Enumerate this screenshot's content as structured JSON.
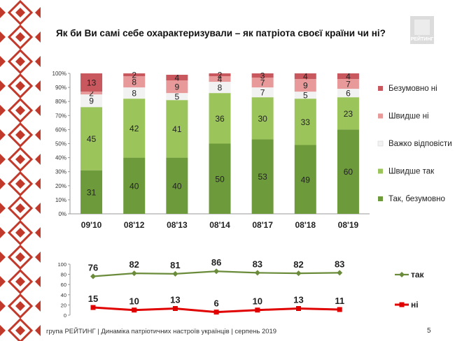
{
  "title": "Як  би Ви самі себе охарактеризували – як патріота своєї країни чи ні?",
  "logo": {
    "text": "РЕЙТИНГ"
  },
  "footer": "група РЕЙТИНГ | Динаміка патріотичних настроїв українців | серпень  2019",
  "page_number": "5",
  "colors": {
    "definitely_yes": "#6d9a3a",
    "rather_yes": "#9bc45a",
    "hard_to_say": "#f2f2f2",
    "rather_no": "#e89a9a",
    "definitely_no": "#c9575e",
    "line_yes": "#6a8c3a",
    "line_no": "#e00000",
    "ornament": "#c0392b"
  },
  "chart_data": [
    {
      "type": "bar",
      "stacked": true,
      "normalized": true,
      "categories": [
        "09'10",
        "08'12",
        "08'13",
        "08'14",
        "08'17",
        "08'18",
        "08'19"
      ],
      "yticks": [
        "0%",
        "10%",
        "20%",
        "30%",
        "40%",
        "50%",
        "60%",
        "70%",
        "80%",
        "90%",
        "100%"
      ],
      "ylim": [
        0,
        100
      ],
      "legend_position": "right",
      "series": [
        {
          "name": "Так, безумовно",
          "values": [
            31,
            40,
            40,
            50,
            53,
            49,
            60
          ]
        },
        {
          "name": "Швидше так",
          "values": [
            45,
            42,
            41,
            36,
            30,
            33,
            23
          ]
        },
        {
          "name": "Важко відповісти",
          "values": [
            9,
            8,
            5,
            8,
            7,
            5,
            6
          ]
        },
        {
          "name": "Швидше ні",
          "values": [
            2,
            8,
            9,
            4,
            7,
            9,
            7
          ]
        },
        {
          "name": "Безумовно ні",
          "values": [
            13,
            2,
            4,
            2,
            3,
            4,
            4
          ]
        }
      ]
    },
    {
      "type": "line",
      "categories": [
        "09'10",
        "08'12",
        "08'13",
        "08'14",
        "08'17",
        "08'18",
        "08'19"
      ],
      "yticks": [
        "0",
        "20",
        "40",
        "60",
        "80",
        "100"
      ],
      "ylim": [
        0,
        100
      ],
      "legend_position": "right",
      "series": [
        {
          "name": "так",
          "values": [
            76,
            82,
            81,
            86,
            83,
            82,
            83
          ]
        },
        {
          "name": "ні",
          "values": [
            15,
            10,
            13,
            6,
            10,
            13,
            11
          ]
        }
      ]
    }
  ]
}
